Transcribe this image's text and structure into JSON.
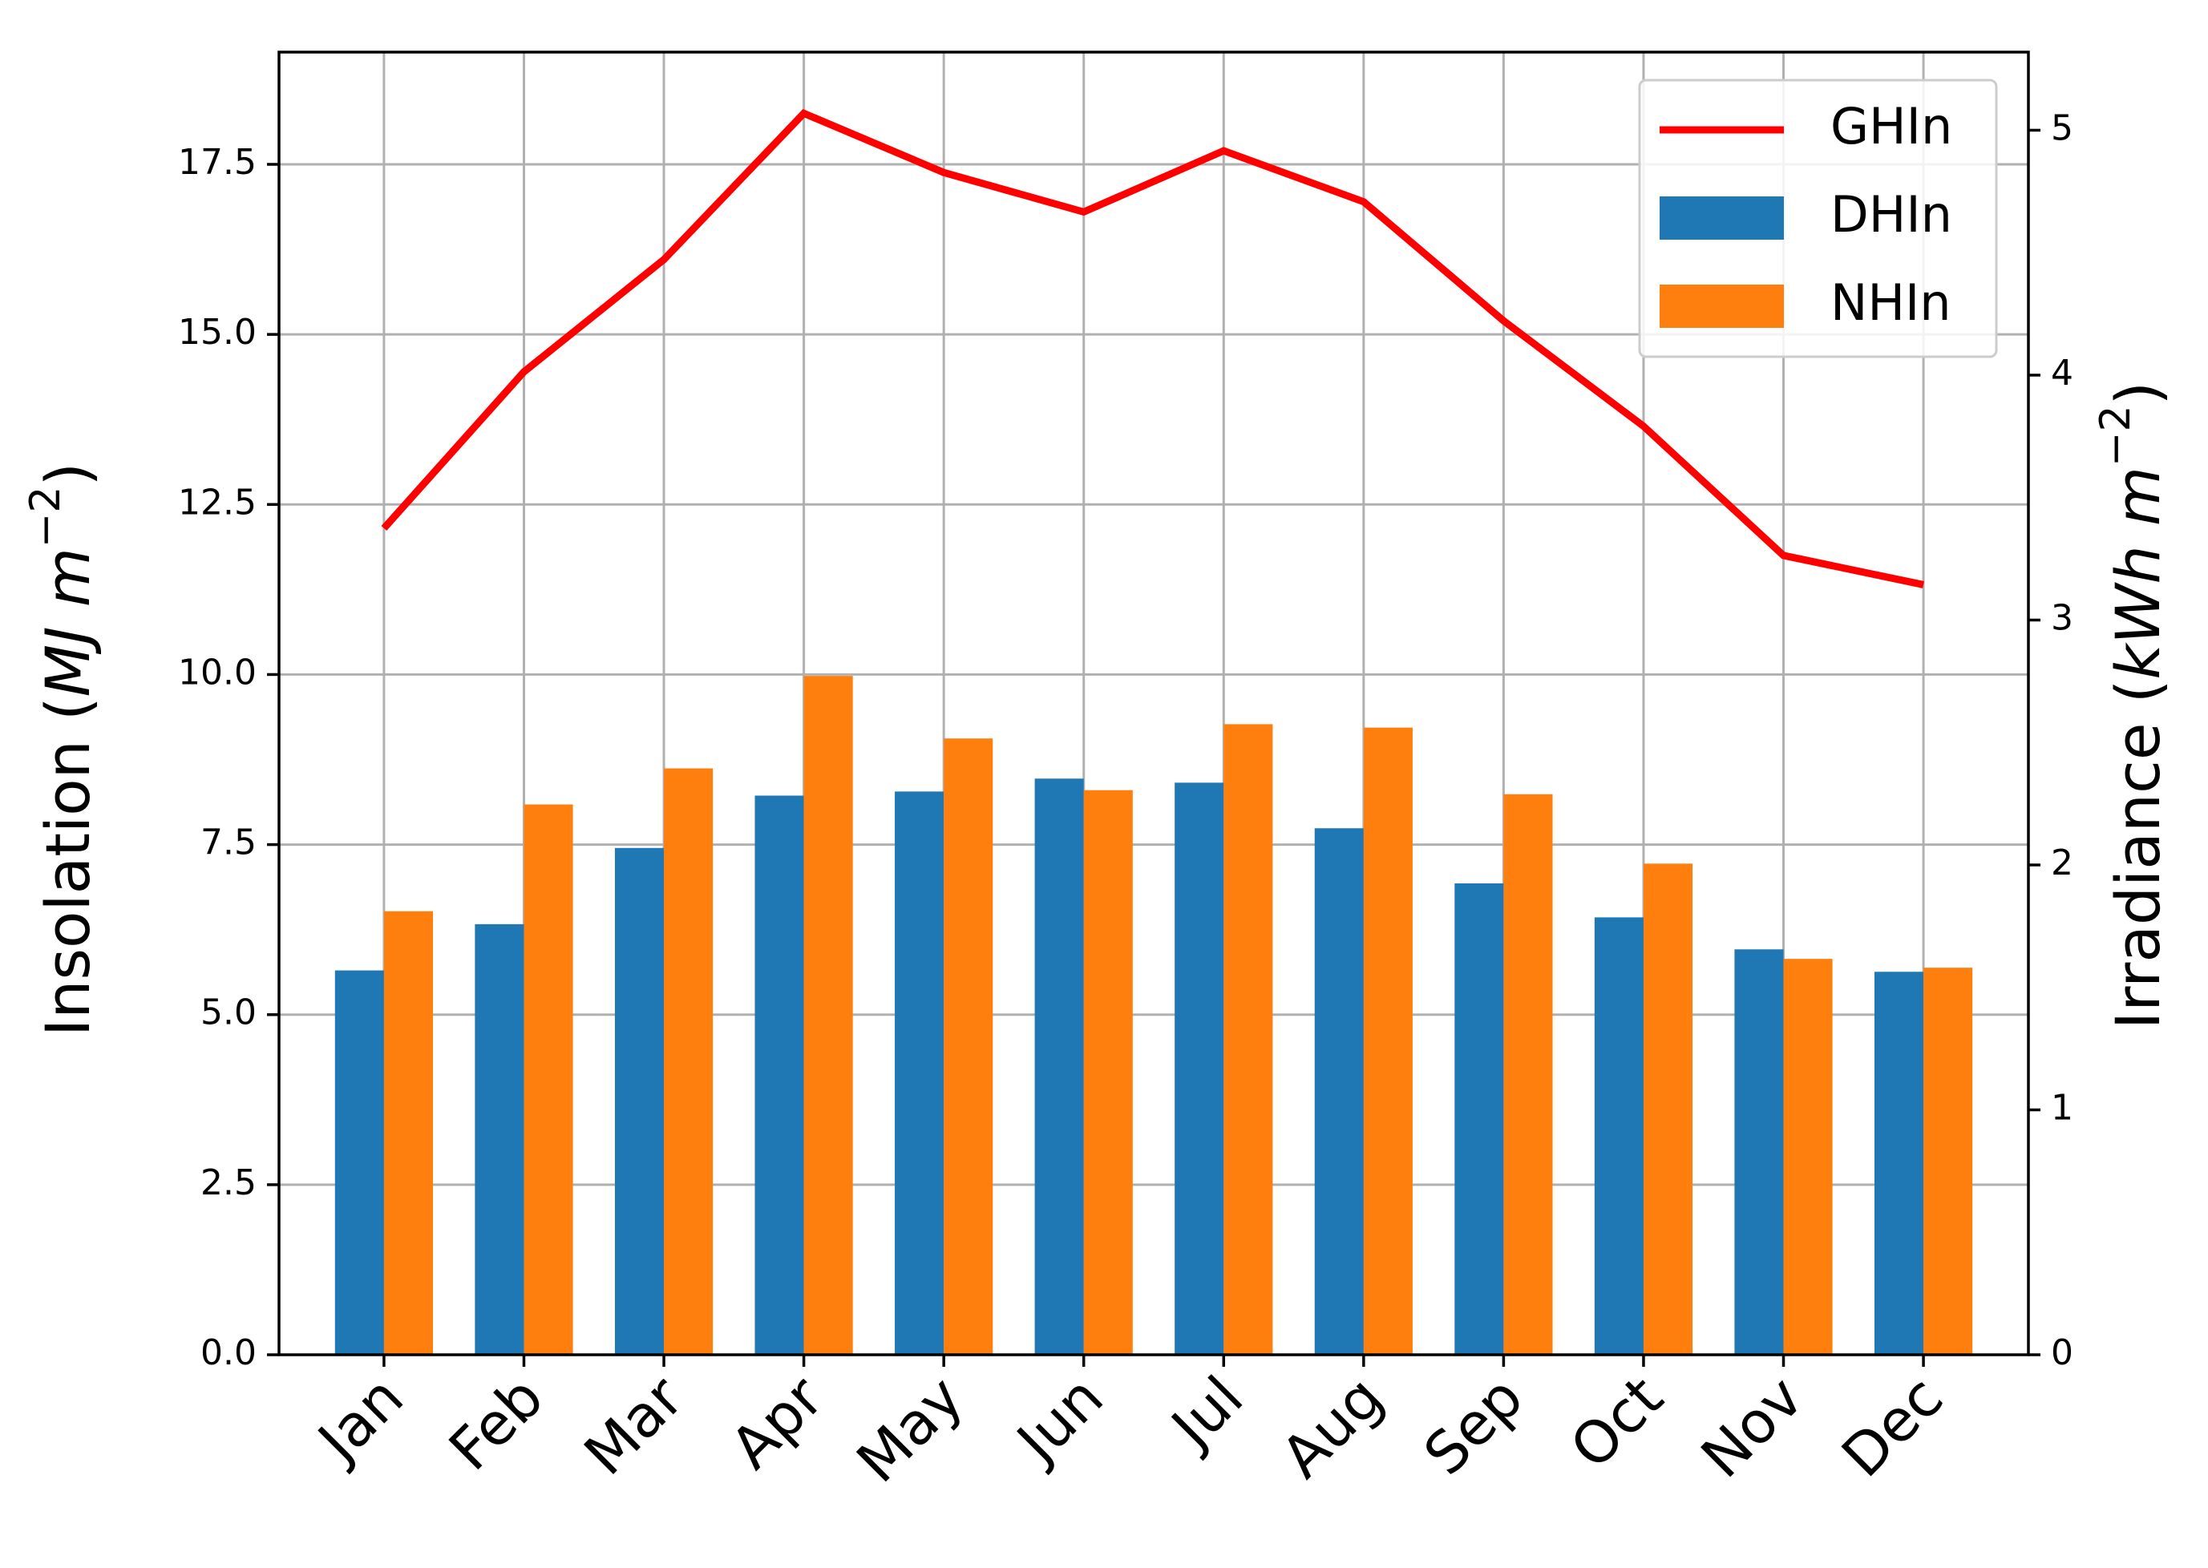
{
  "chart_data": {
    "type": "bar",
    "categories": [
      "Jan",
      "Feb",
      "Mar",
      "Apr",
      "May",
      "Jun",
      "Jul",
      "Aug",
      "Sep",
      "Oct",
      "Nov",
      "Dec"
    ],
    "series": [
      {
        "name": "DHIn",
        "axis": "left",
        "kind": "bar",
        "color": "#1f77b4",
        "values": [
          5.65,
          6.33,
          7.45,
          8.22,
          8.28,
          8.47,
          8.41,
          7.74,
          6.93,
          6.43,
          5.96,
          5.63
        ]
      },
      {
        "name": "NHIn",
        "axis": "left",
        "kind": "bar",
        "color": "#ff7f0e",
        "values": [
          6.52,
          8.09,
          8.62,
          9.98,
          9.06,
          8.3,
          9.27,
          9.22,
          8.24,
          7.22,
          5.82,
          5.69
        ]
      },
      {
        "name": "GHIn",
        "axis": "left",
        "kind": "line",
        "color": "#ff0000",
        "values": [
          12.15,
          14.45,
          16.1,
          18.25,
          17.38,
          16.8,
          17.7,
          16.95,
          15.2,
          13.65,
          11.75,
          11.32
        ]
      }
    ],
    "ylabel_left": {
      "main": "Insolation (",
      "italic": "MJ m",
      "sup": "−2",
      "close": ")"
    },
    "ylabel_right": {
      "main": "Irradiance (",
      "italic": "kWh  m",
      "sup": "−2",
      "close": ")"
    },
    "xlabel": "",
    "ylim_left": [
      0,
      19.15
    ],
    "ylim_right": [
      0,
      5.319
    ],
    "yticks_left": [
      "0.0",
      "2.5",
      "5.0",
      "7.5",
      "10.0",
      "12.5",
      "15.0",
      "17.5"
    ],
    "yticks_right": [
      "0",
      "1",
      "2",
      "3",
      "4",
      "5"
    ],
    "grid": true,
    "legend_position": "top-right"
  }
}
